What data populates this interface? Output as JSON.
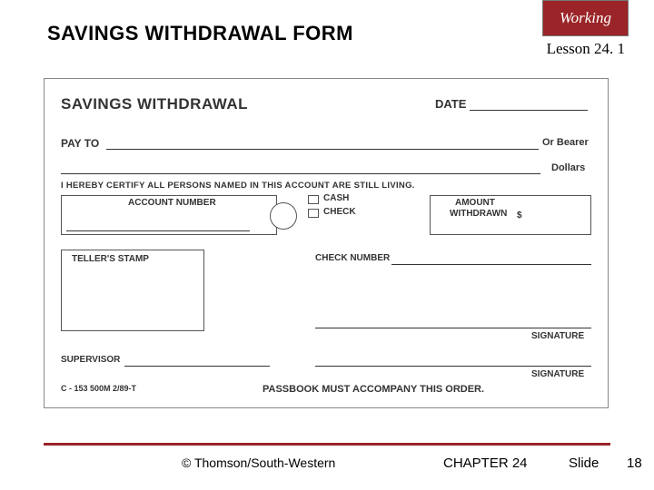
{
  "header": {
    "title": "SAVINGS WITHDRAWAL FORM",
    "logo_text": "Working",
    "lesson": "Lesson 24. 1"
  },
  "form": {
    "heading": "SAVINGS WITHDRAWAL",
    "date_label": "DATE",
    "payto_label": "PAY TO",
    "or_bearer": "Or Bearer",
    "dollars": "Dollars",
    "certify": "I HEREBY CERTIFY ALL PERSONS NAMED IN THIS ACCOUNT ARE STILL LIVING.",
    "account_number_label": "ACCOUNT NUMBER",
    "cash": "CASH",
    "check": "CHECK",
    "amount_line1": "AMOUNT",
    "amount_line2": "WITHDRAWN",
    "amount_dollar": "$",
    "tellers_stamp": "TELLER'S STAMP",
    "check_number": "CHECK NUMBER",
    "signature": "SIGNATURE",
    "supervisor": "SUPERVISOR",
    "form_code": "C - 153 500M 2/89-T",
    "passbook": "PASSBOOK MUST ACCOMPANY THIS ORDER."
  },
  "footer": {
    "copyright": "© Thomson/South-Western",
    "chapter": "CHAPTER 24",
    "slide_label": "Slide",
    "slide_number": "18"
  },
  "colors": {
    "accent": "#9a2427",
    "text": "#000000",
    "form_text": "#333333",
    "border": "#888888"
  }
}
